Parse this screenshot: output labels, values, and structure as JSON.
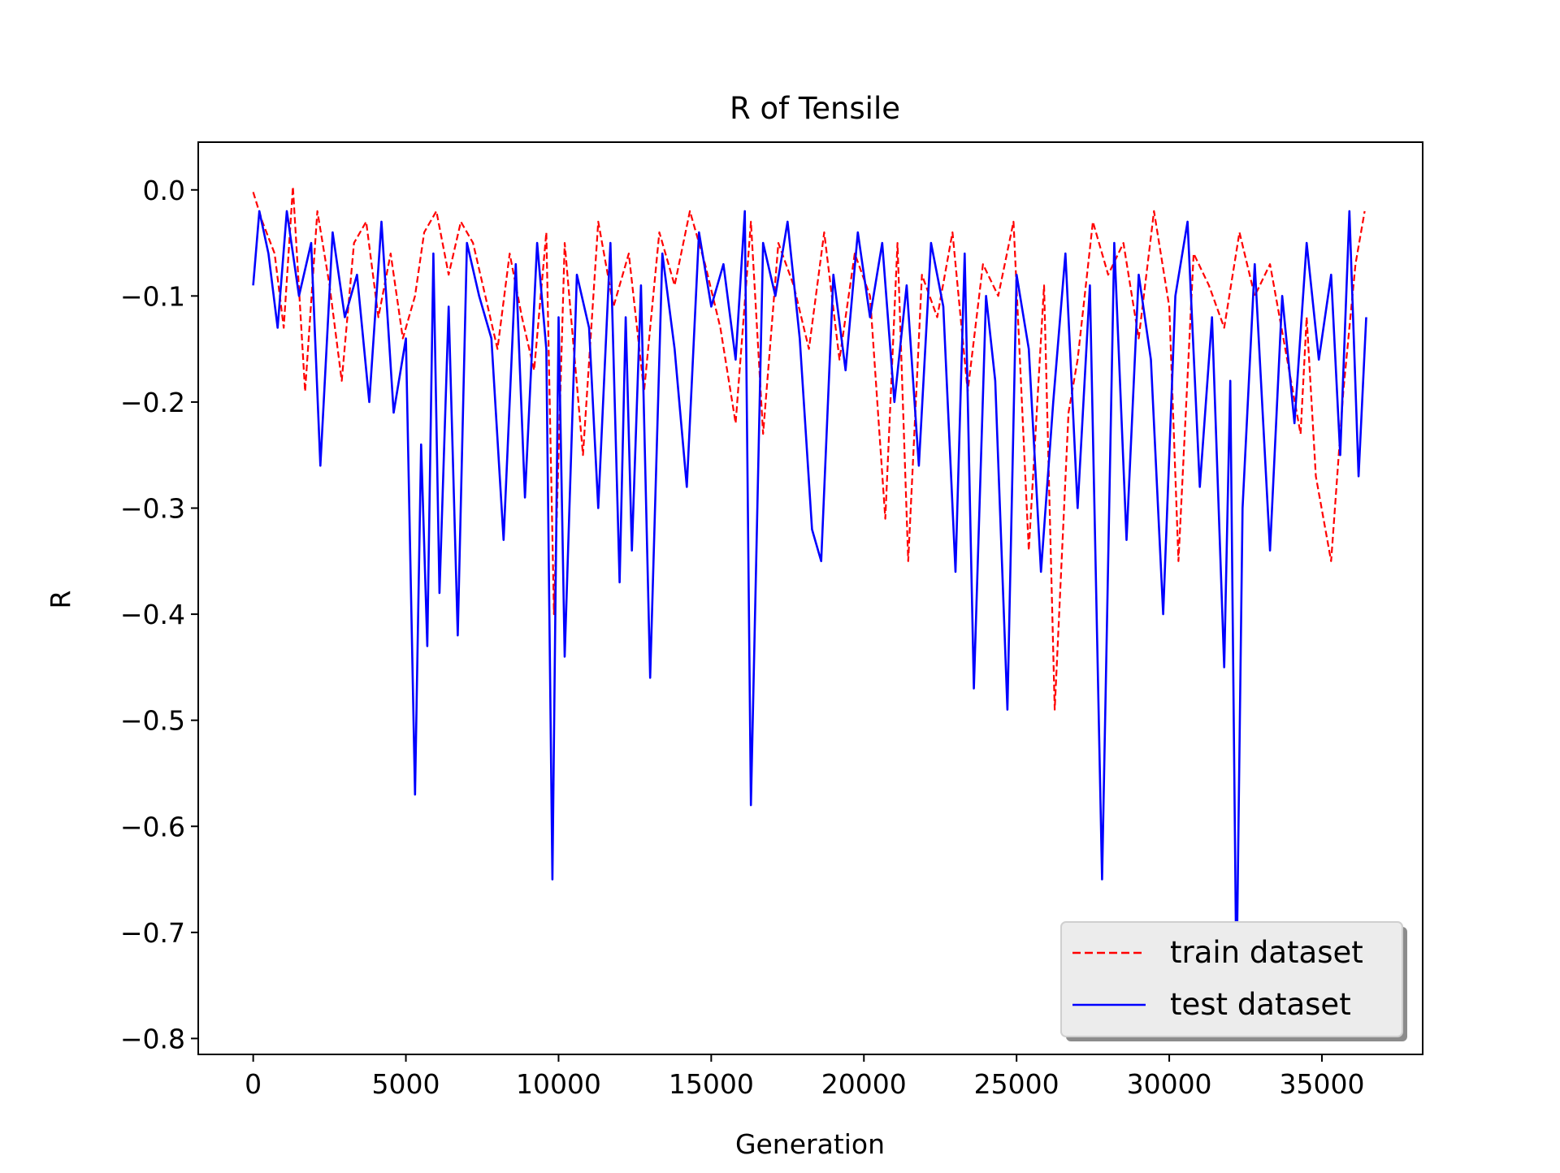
{
  "chart_data": {
    "type": "line",
    "title": "R of Tensile",
    "xlabel": "Generation",
    "ylabel": "R",
    "xlim": [
      -1800,
      38300
    ],
    "ylim": [
      -0.815,
      0.045
    ],
    "xticks": [
      0,
      5000,
      10000,
      15000,
      20000,
      25000,
      30000,
      35000
    ],
    "xtick_labels": [
      "0",
      "5000",
      "10000",
      "15000",
      "20000",
      "25000",
      "30000",
      "35000"
    ],
    "yticks": [
      0.0,
      -0.1,
      -0.2,
      -0.3,
      -0.4,
      -0.5,
      -0.6,
      -0.7,
      -0.8
    ],
    "ytick_labels": [
      "0.0",
      "−0.1",
      "−0.2",
      "−0.3",
      "−0.4",
      "−0.5",
      "−0.6",
      "−0.7",
      "−0.8"
    ],
    "grid": false,
    "legend_position": "lower-right",
    "series": [
      {
        "name": "train dataset",
        "color": "#ff0000",
        "style": "dashed",
        "x": [
          0,
          300,
          700,
          1000,
          1300,
          1700,
          2100,
          2500,
          2900,
          3300,
          3700,
          4100,
          4500,
          4900,
          5300,
          5600,
          6000,
          6400,
          6800,
          7200,
          7600,
          8000,
          8400,
          8800,
          9200,
          9600,
          9850,
          10200,
          10800,
          11300,
          11800,
          12300,
          12800,
          13300,
          13800,
          14300,
          14800,
          15300,
          15800,
          16300,
          16700,
          17200,
          17700,
          18200,
          18700,
          19200,
          19700,
          20200,
          20700,
          21100,
          21450,
          21900,
          22400,
          22900,
          23400,
          23900,
          24400,
          24900,
          25400,
          25900,
          26250,
          26700,
          27000,
          27500,
          28000,
          28500,
          29000,
          29500,
          30000,
          30300,
          30800,
          31300,
          31800,
          32300,
          32800,
          33300,
          33800,
          34300,
          34500,
          34800,
          35300,
          35700,
          36100,
          36400
        ],
        "y": [
          -0.002,
          -0.03,
          -0.06,
          -0.13,
          0.003,
          -0.19,
          -0.02,
          -0.09,
          -0.18,
          -0.05,
          -0.03,
          -0.12,
          -0.06,
          -0.14,
          -0.1,
          -0.04,
          -0.02,
          -0.08,
          -0.03,
          -0.05,
          -0.1,
          -0.15,
          -0.06,
          -0.12,
          -0.17,
          -0.04,
          -0.4,
          -0.05,
          -0.25,
          -0.03,
          -0.11,
          -0.06,
          -0.19,
          -0.04,
          -0.09,
          -0.02,
          -0.07,
          -0.13,
          -0.22,
          -0.03,
          -0.23,
          -0.05,
          -0.09,
          -0.15,
          -0.04,
          -0.16,
          -0.06,
          -0.1,
          -0.31,
          -0.05,
          -0.35,
          -0.08,
          -0.12,
          -0.04,
          -0.19,
          -0.07,
          -0.1,
          -0.03,
          -0.34,
          -0.09,
          -0.49,
          -0.21,
          -0.16,
          -0.03,
          -0.08,
          -0.05,
          -0.14,
          -0.02,
          -0.11,
          -0.35,
          -0.06,
          -0.09,
          -0.13,
          -0.04,
          -0.1,
          -0.07,
          -0.15,
          -0.23,
          -0.12,
          -0.27,
          -0.35,
          -0.19,
          -0.07,
          -0.02
        ]
      },
      {
        "name": "test dataset",
        "color": "#0000ff",
        "style": "solid",
        "x": [
          0,
          200,
          500,
          800,
          1100,
          1500,
          1900,
          2200,
          2600,
          3000,
          3400,
          3800,
          4200,
          4600,
          5000,
          5300,
          5500,
          5700,
          5900,
          6100,
          6400,
          6700,
          7000,
          7400,
          7800,
          8200,
          8600,
          8900,
          9300,
          9600,
          9800,
          10000,
          10200,
          10600,
          11000,
          11300,
          11700,
          12000,
          12200,
          12400,
          12700,
          13000,
          13400,
          13800,
          14200,
          14600,
          15000,
          15400,
          15800,
          16100,
          16300,
          16700,
          17100,
          17500,
          17900,
          18300,
          18600,
          19000,
          19400,
          19800,
          20200,
          20600,
          21000,
          21400,
          21800,
          22200,
          22600,
          23000,
          23300,
          23600,
          24000,
          24300,
          24700,
          25000,
          25400,
          25800,
          26200,
          26600,
          27000,
          27400,
          27800,
          28200,
          28600,
          29000,
          29400,
          29800,
          30200,
          30600,
          31000,
          31400,
          31800,
          32000,
          32200,
          32400,
          32800,
          33300,
          33700,
          34100,
          34500,
          34900,
          35300,
          35600,
          35900,
          36200,
          36450
        ],
        "y": [
          -0.09,
          -0.02,
          -0.06,
          -0.13,
          -0.02,
          -0.1,
          -0.05,
          -0.26,
          -0.04,
          -0.12,
          -0.08,
          -0.2,
          -0.03,
          -0.21,
          -0.14,
          -0.57,
          -0.24,
          -0.43,
          -0.06,
          -0.38,
          -0.11,
          -0.42,
          -0.05,
          -0.1,
          -0.14,
          -0.33,
          -0.07,
          -0.29,
          -0.05,
          -0.15,
          -0.65,
          -0.12,
          -0.44,
          -0.08,
          -0.13,
          -0.3,
          -0.05,
          -0.37,
          -0.12,
          -0.34,
          -0.09,
          -0.46,
          -0.06,
          -0.15,
          -0.28,
          -0.04,
          -0.11,
          -0.07,
          -0.16,
          -0.02,
          -0.58,
          -0.05,
          -0.1,
          -0.03,
          -0.14,
          -0.32,
          -0.35,
          -0.08,
          -0.17,
          -0.04,
          -0.12,
          -0.05,
          -0.2,
          -0.09,
          -0.26,
          -0.05,
          -0.11,
          -0.36,
          -0.06,
          -0.47,
          -0.1,
          -0.18,
          -0.49,
          -0.08,
          -0.15,
          -0.36,
          -0.2,
          -0.06,
          -0.3,
          -0.09,
          -0.65,
          -0.05,
          -0.33,
          -0.08,
          -0.16,
          -0.4,
          -0.1,
          -0.03,
          -0.28,
          -0.12,
          -0.45,
          -0.18,
          -0.75,
          -0.3,
          -0.07,
          -0.34,
          -0.1,
          -0.22,
          -0.05,
          -0.16,
          -0.08,
          -0.25,
          -0.02,
          -0.27,
          -0.12
        ]
      }
    ]
  }
}
